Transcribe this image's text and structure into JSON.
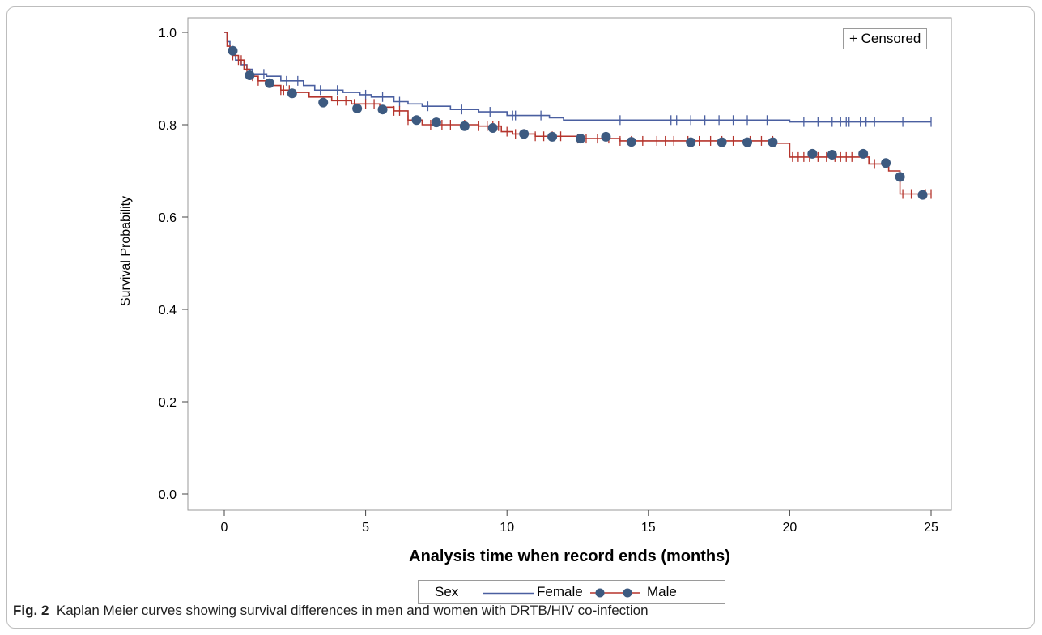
{
  "chart_data": {
    "type": "line",
    "xlabel": "Analysis time when record ends (months)",
    "ylabel": "Survival Probability",
    "xlim": [
      0,
      25
    ],
    "ylim": [
      0,
      1
    ],
    "xticks": [
      "0",
      "5",
      "10",
      "15",
      "20",
      "25"
    ],
    "yticks": [
      "0.0",
      "0.2",
      "0.4",
      "0.6",
      "0.8",
      "1.0"
    ],
    "grid": false,
    "legend_position": "bottom",
    "legend_title": "Sex",
    "censor_label": "+ Censored",
    "series": [
      {
        "name": "Female",
        "color": "#4a5fa0",
        "steps": [
          [
            0,
            1.0
          ],
          [
            0.1,
            0.98
          ],
          [
            0.2,
            0.96
          ],
          [
            0.4,
            0.94
          ],
          [
            0.6,
            0.93
          ],
          [
            0.8,
            0.92
          ],
          [
            1.0,
            0.91
          ],
          [
            1.5,
            0.905
          ],
          [
            2.0,
            0.895
          ],
          [
            2.8,
            0.885
          ],
          [
            3.2,
            0.875
          ],
          [
            4.2,
            0.87
          ],
          [
            4.8,
            0.865
          ],
          [
            5.2,
            0.86
          ],
          [
            6.0,
            0.85
          ],
          [
            6.5,
            0.845
          ],
          [
            7.0,
            0.84
          ],
          [
            8.0,
            0.833
          ],
          [
            9.0,
            0.828
          ],
          [
            10.0,
            0.82
          ],
          [
            11.5,
            0.815
          ],
          [
            12.0,
            0.81
          ],
          [
            20.0,
            0.806
          ],
          [
            25.0,
            0.806
          ]
        ],
        "censored_x": [
          0.3,
          0.7,
          1.0,
          1.4,
          2.2,
          2.6,
          3.4,
          4.0,
          5.0,
          5.6,
          6.2,
          7.2,
          8.4,
          9.4,
          10.2,
          10.3,
          11.2,
          14.0,
          15.8,
          16.0,
          16.5,
          17.0,
          17.5,
          18.0,
          18.5,
          19.2,
          20.5,
          21.0,
          21.5,
          21.8,
          22.0,
          22.1,
          22.5,
          22.7,
          23.0,
          24.0,
          25.0
        ]
      },
      {
        "name": "Male",
        "color": "#b5342c",
        "marker_color": "#3d5a80",
        "steps": [
          [
            0,
            1.0
          ],
          [
            0.1,
            0.97
          ],
          [
            0.2,
            0.955
          ],
          [
            0.3,
            0.95
          ],
          [
            0.5,
            0.94
          ],
          [
            0.7,
            0.92
          ],
          [
            0.9,
            0.905
          ],
          [
            1.2,
            0.895
          ],
          [
            1.6,
            0.885
          ],
          [
            2.0,
            0.875
          ],
          [
            2.5,
            0.87
          ],
          [
            3.0,
            0.86
          ],
          [
            3.8,
            0.852
          ],
          [
            4.5,
            0.845
          ],
          [
            5.5,
            0.838
          ],
          [
            6.0,
            0.83
          ],
          [
            6.5,
            0.81
          ],
          [
            7.0,
            0.8
          ],
          [
            9.0,
            0.797
          ],
          [
            9.8,
            0.785
          ],
          [
            10.2,
            0.78
          ],
          [
            11.0,
            0.775
          ],
          [
            12.5,
            0.77
          ],
          [
            14.0,
            0.765
          ],
          [
            19.5,
            0.76
          ],
          [
            20.0,
            0.73
          ],
          [
            22.8,
            0.715
          ],
          [
            23.5,
            0.7
          ],
          [
            23.9,
            0.65
          ],
          [
            25.0,
            0.65
          ]
        ],
        "censored_x": [
          0.3,
          0.5,
          0.6,
          0.8,
          1.0,
          1.2,
          2.0,
          2.1,
          2.3,
          4.0,
          4.3,
          4.6,
          5.0,
          5.3,
          6.0,
          6.2,
          6.5,
          7.3,
          7.7,
          8.0,
          8.5,
          9.0,
          9.3,
          9.5,
          9.7,
          10.0,
          10.3,
          10.6,
          11.0,
          11.3,
          11.6,
          11.9,
          12.5,
          12.8,
          13.2,
          13.6,
          14.0,
          14.4,
          14.8,
          15.3,
          15.6,
          15.9,
          16.4,
          16.8,
          17.2,
          17.6,
          18.0,
          18.6,
          19.0,
          19.4,
          20.1,
          20.3,
          20.5,
          20.7,
          21.0,
          21.3,
          21.6,
          21.8,
          22.0,
          22.2,
          23.0,
          24.0,
          24.3,
          24.8,
          25.0
        ],
        "markers": [
          [
            0.3,
            0.96
          ],
          [
            0.9,
            0.907
          ],
          [
            1.6,
            0.89
          ],
          [
            2.4,
            0.868
          ],
          [
            3.5,
            0.848
          ],
          [
            4.7,
            0.835
          ],
          [
            5.6,
            0.833
          ],
          [
            6.8,
            0.81
          ],
          [
            7.5,
            0.805
          ],
          [
            8.5,
            0.797
          ],
          [
            9.5,
            0.793
          ],
          [
            10.6,
            0.78
          ],
          [
            11.6,
            0.774
          ],
          [
            12.6,
            0.77
          ],
          [
            13.5,
            0.774
          ],
          [
            14.4,
            0.763
          ],
          [
            16.5,
            0.762
          ],
          [
            17.6,
            0.762
          ],
          [
            18.5,
            0.762
          ],
          [
            19.4,
            0.762
          ],
          [
            20.8,
            0.737
          ],
          [
            21.5,
            0.735
          ],
          [
            22.6,
            0.737
          ],
          [
            23.4,
            0.717
          ],
          [
            23.9,
            0.687
          ],
          [
            24.7,
            0.648
          ]
        ]
      }
    ]
  },
  "caption": {
    "label": "Fig. 2",
    "text": "Kaplan Meier curves showing survival differences in men and women with DRTB/HIV co-infection"
  }
}
